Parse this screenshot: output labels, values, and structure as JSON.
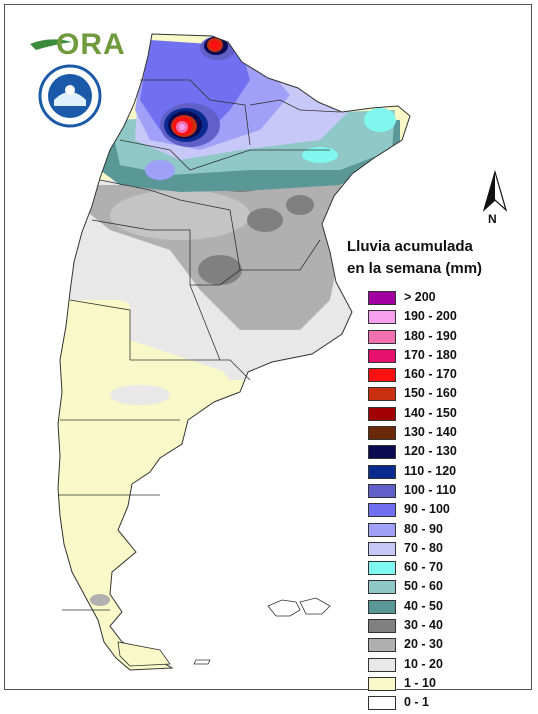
{
  "header": {
    "logo_text": "ORA",
    "seal_text": "SERVICIO METEOROLÓGICO NACIONAL · ARGENTINA"
  },
  "legend": {
    "title_line1": "Lluvia acumulada",
    "title_line2": "en la semana (mm)",
    "items": [
      {
        "label": "> 200",
        "color": "#a000a0"
      },
      {
        "label": "190 - 200",
        "color": "#f7a0f0"
      },
      {
        "label": "180 - 190",
        "color": "#f070b0"
      },
      {
        "label": "170 - 180",
        "color": "#e8106e"
      },
      {
        "label": "160 - 170",
        "color": "#ff1010"
      },
      {
        "label": "150 - 160",
        "color": "#c83010"
      },
      {
        "label": "140 - 150",
        "color": "#a00000"
      },
      {
        "label": "130 - 140",
        "color": "#6a2a0a"
      },
      {
        "label": "120 - 130",
        "color": "#0a0a50"
      },
      {
        "label": "110 - 120",
        "color": "#0a2a90"
      },
      {
        "label": "100 - 110",
        "color": "#6060c8"
      },
      {
        "label": "90 - 100",
        "color": "#7070f0"
      },
      {
        "label": "80 - 90",
        "color": "#a0a0f8"
      },
      {
        "label": "70 - 80",
        "color": "#c8c8f8"
      },
      {
        "label": "60 - 70",
        "color": "#80f8f0"
      },
      {
        "label": "50 - 60",
        "color": "#90c8c8"
      },
      {
        "label": "40 - 50",
        "color": "#5a9898"
      },
      {
        "label": "30 - 40",
        "color": "#808080"
      },
      {
        "label": "20 - 30",
        "color": "#b0b0b0"
      },
      {
        "label": "10 - 20",
        "color": "#e8e8e8"
      },
      {
        "label": "1 - 10",
        "color": "#f8f8c8"
      },
      {
        "label": "0 - 1",
        "color": "#ffffff"
      }
    ]
  },
  "compass": {
    "label": "N"
  }
}
